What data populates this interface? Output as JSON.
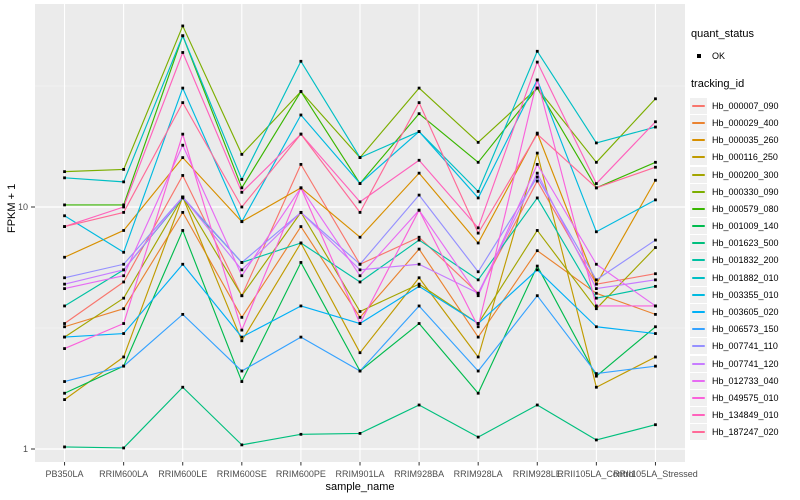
{
  "figure": {
    "background": "#FFFFFF",
    "panel_background": "#EBEBEB",
    "grid_major_color": "#FFFFFF",
    "grid_minor_color": "#F5F5F5",
    "axis_text_color": "#4D4D4D",
    "tick_color": "#333333",
    "point_color": "#000000"
  },
  "axes": {
    "x_title": "sample_name",
    "y_title": "FPKM + 1",
    "y_tick_labels": [
      "1",
      "10"
    ]
  },
  "legend": {
    "quant_status_title": "quant_status",
    "quant_status_items": [
      {
        "label": "OK",
        "marker": "black-point"
      }
    ],
    "tracking_title": "tracking_id"
  },
  "chart_data": {
    "type": "line",
    "title": "",
    "xlabel": "sample_name",
    "ylabel": "FPKM + 1",
    "y_scale": "log10",
    "y_ticks": [
      1,
      10
    ],
    "ylim": [
      0.89,
      69
    ],
    "grid": true,
    "legend_position": "right",
    "categories": [
      "PB350LA",
      "RRIM600LA",
      "RRIM600LE",
      "RRIM600SE",
      "RRIM600PE",
      "RRIM901LA",
      "RRIM928BA",
      "RRIM928LA",
      "RRIM928LE",
      "RRII105LA_Control",
      "RRII105LA_Stressed"
    ],
    "series": [
      {
        "name": "Hb_000007_090",
        "color": "#F8766D",
        "values": [
          3.3,
          4.9,
          13.5,
          4.3,
          15,
          5.8,
          7.5,
          4.4,
          12.8,
          4.8,
          5.3
        ]
      },
      {
        "name": "Hb_000029_400",
        "color": "#EA8331",
        "values": [
          3.2,
          3.8,
          9.5,
          3.5,
          8.3,
          3.5,
          6.7,
          2.9,
          6.6,
          4.4,
          3.6
        ]
      },
      {
        "name": "Hb_000035_260",
        "color": "#D89000",
        "values": [
          6.2,
          8.0,
          16,
          8.7,
          12,
          7.5,
          13.8,
          7.1,
          20.2,
          4.8,
          12.9
        ]
      },
      {
        "name": "Hb_000116_250",
        "color": "#C09B00",
        "values": [
          1.6,
          2.4,
          11,
          2.8,
          7.1,
          2.5,
          5.1,
          2.4,
          16.7,
          1.8,
          2.4
        ]
      },
      {
        "name": "Hb_000200_300",
        "color": "#A3A500",
        "values": [
          2.9,
          4.2,
          11,
          4.3,
          9.5,
          3.7,
          4.8,
          3.3,
          8.0,
          3.8,
          6.8
        ]
      },
      {
        "name": "Hb_000330_090",
        "color": "#7CAE00",
        "values": [
          14.0,
          14.3,
          56,
          16.5,
          30,
          16,
          31,
          18.5,
          31,
          15.3,
          28
        ]
      },
      {
        "name": "Hb_000579_080",
        "color": "#39B600",
        "values": [
          10.2,
          10.2,
          51,
          12,
          30,
          12.5,
          24.3,
          15.3,
          31,
          12,
          15.3
        ]
      },
      {
        "name": "Hb_001009_140",
        "color": "#00BB4E",
        "values": [
          1.7,
          2.2,
          8.0,
          1.9,
          5.9,
          2.1,
          3.3,
          1.7,
          5.7,
          2.0,
          3.2
        ]
      },
      {
        "name": "Hb_001623_500",
        "color": "#00BF7D",
        "values": [
          1.02,
          1.01,
          1.8,
          1.04,
          1.15,
          1.16,
          1.52,
          1.12,
          1.52,
          1.09,
          1.26
        ]
      },
      {
        "name": "Hb_001832_200",
        "color": "#00C1A3",
        "values": [
          3.9,
          5.5,
          10.9,
          5.9,
          7.1,
          4.9,
          7.3,
          5.0,
          10.9,
          4.2,
          4.7
        ]
      },
      {
        "name": "Hb_001882_010",
        "color": "#00BFC4",
        "values": [
          13.2,
          12.7,
          51,
          13,
          40,
          16,
          20.5,
          11.6,
          44,
          18.4,
          21.4
        ]
      },
      {
        "name": "Hb_003355_010",
        "color": "#00BAE0",
        "values": [
          9.2,
          6.5,
          31,
          8.7,
          24,
          12.5,
          20.5,
          10.9,
          33.5,
          7.9,
          10.7
        ]
      },
      {
        "name": "Hb_003605_020",
        "color": "#00B0F6",
        "values": [
          2.9,
          3.0,
          5.8,
          2.9,
          3.9,
          3.3,
          4.7,
          3.3,
          5.5,
          3.2,
          3.0
        ]
      },
      {
        "name": "Hb_006573_150",
        "color": "#35A2FF",
        "values": [
          1.9,
          2.2,
          3.6,
          2.1,
          2.9,
          2.1,
          3.9,
          2.1,
          4.3,
          2.05,
          2.2
        ]
      },
      {
        "name": "Hb_007741_110",
        "color": "#9590FF",
        "values": [
          5.1,
          5.8,
          11,
          5.9,
          9.5,
          5.8,
          11.2,
          5.4,
          13.3,
          5.0,
          7.3
        ]
      },
      {
        "name": "Hb_007741_120",
        "color": "#C77CFF",
        "values": [
          4.8,
          5.5,
          11,
          5.5,
          9.5,
          5.5,
          5.8,
          4.4,
          13.8,
          4.6,
          5.0
        ]
      },
      {
        "name": "Hb_012733_040",
        "color": "#E76BF3",
        "values": [
          4.6,
          5.2,
          18,
          5.2,
          12,
          5.2,
          9.7,
          4.3,
          15,
          5.8,
          3.9
        ]
      },
      {
        "name": "Hb_049575_010",
        "color": "#FA62DB",
        "values": [
          2.6,
          3.3,
          20,
          3.1,
          12,
          3.3,
          9.7,
          3.2,
          33.5,
          3.9,
          3.9
        ]
      },
      {
        "name": "Hb_134849_010",
        "color": "#FF62BC",
        "values": [
          8.3,
          10.0,
          43.5,
          11.5,
          20,
          10.5,
          15.6,
          8.2,
          39.7,
          12.5,
          22.5
        ]
      },
      {
        "name": "Hb_187247_020",
        "color": "#FF6A98",
        "values": [
          8.3,
          9.5,
          27,
          10,
          20,
          9.5,
          27,
          7.8,
          20,
          12,
          14.6
        ]
      }
    ]
  }
}
